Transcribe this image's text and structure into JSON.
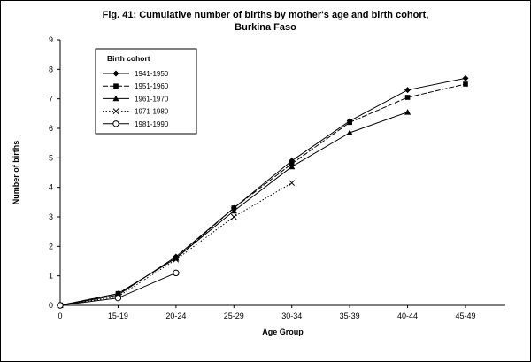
{
  "chart_data": {
    "type": "line",
    "title_line1": "Fig. 41:  Cumulative number of births by mother's age and birth cohort,",
    "title_line2": "Burkina Faso",
    "xlabel": "Age Group",
    "ylabel": "Number of births",
    "ylim": [
      0,
      9
    ],
    "ytick_step": 1,
    "grid": false,
    "categories": [
      "0",
      "15-19",
      "20-24",
      "25-29",
      "30-34",
      "35-39",
      "40-44",
      "45-49"
    ],
    "legend_title": "Birth cohort",
    "legend_position": "top-left-inside",
    "series": [
      {
        "name": "1941-1950",
        "marker": "diamond",
        "line": "solid",
        "values": [
          0,
          0.35,
          1.65,
          3.3,
          4.9,
          6.25,
          7.3,
          7.7
        ]
      },
      {
        "name": "1951-1960",
        "marker": "square",
        "line": "dashed",
        "values": [
          0,
          0.4,
          1.6,
          3.3,
          4.8,
          6.2,
          7.05,
          7.5
        ]
      },
      {
        "name": "1961-1970",
        "marker": "triangle",
        "line": "solid",
        "values": [
          0,
          0.4,
          1.6,
          3.2,
          4.7,
          5.85,
          6.55,
          null
        ]
      },
      {
        "name": "1971-1980",
        "marker": "x",
        "line": "dotted",
        "values": [
          0,
          0.3,
          1.55,
          3.0,
          4.15,
          null,
          null,
          null
        ]
      },
      {
        "name": "1981-1990",
        "marker": "circle-open",
        "line": "solid",
        "values": [
          0,
          0.25,
          1.1,
          null,
          null,
          null,
          null,
          null
        ]
      }
    ],
    "colors": {
      "line": "#000000",
      "background": "#ffffff",
      "border": "#000000"
    }
  }
}
